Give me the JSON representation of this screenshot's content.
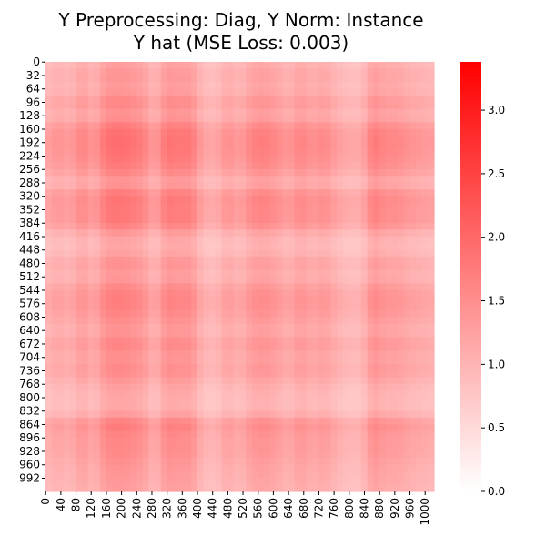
{
  "chart_data": {
    "type": "heatmap",
    "title_line1": "Y Preprocessing: Diag, Y Norm: Instance",
    "title_line2": "Y hat (MSE Loss: 0.003)",
    "xlabel": "",
    "ylabel": "",
    "n": 1024,
    "y_tick_labels": [
      "0",
      "32",
      "64",
      "96",
      "128",
      "160",
      "192",
      "224",
      "256",
      "288",
      "320",
      "352",
      "384",
      "416",
      "448",
      "480",
      "512",
      "544",
      "576",
      "608",
      "640",
      "672",
      "704",
      "736",
      "768",
      "800",
      "832",
      "864",
      "896",
      "928",
      "960",
      "992"
    ],
    "x_tick_labels": [
      "0",
      "40",
      "80",
      "120",
      "160",
      "200",
      "240",
      "280",
      "320",
      "360",
      "400",
      "440",
      "480",
      "520",
      "560",
      "600",
      "640",
      "680",
      "720",
      "760",
      "800",
      "840",
      "880",
      "920",
      "960",
      "1000"
    ],
    "colorbar": {
      "min": 0.0,
      "max": 3.38,
      "ticks": [
        "0.0",
        "0.5",
        "1.0",
        "1.5",
        "2.0",
        "2.5",
        "3.0"
      ],
      "tick_values": [
        0.0,
        0.5,
        1.0,
        1.5,
        2.0,
        2.5,
        3.0
      ],
      "color_low": "#ffffff",
      "color_high": "#ff0000"
    },
    "band_profile": {
      "positions": [
        0,
        32,
        64,
        96,
        128,
        160,
        192,
        224,
        256,
        288,
        320,
        352,
        384,
        416,
        448,
        480,
        512,
        544,
        576,
        608,
        640,
        672,
        704,
        736,
        768,
        800,
        832,
        864,
        896,
        928,
        960,
        992,
        1023
      ],
      "weights": [
        0.9,
        1.05,
        0.95,
        1.2,
        1.0,
        1.35,
        1.4,
        1.35,
        1.25,
        0.95,
        1.35,
        1.3,
        1.3,
        0.9,
        0.85,
        1.1,
        0.95,
        1.2,
        1.25,
        1.15,
        1.0,
        1.2,
        1.05,
        1.15,
        0.95,
        0.85,
        0.85,
        1.3,
        1.15,
        1.15,
        1.05,
        1.0,
        0.95
      ]
    }
  }
}
